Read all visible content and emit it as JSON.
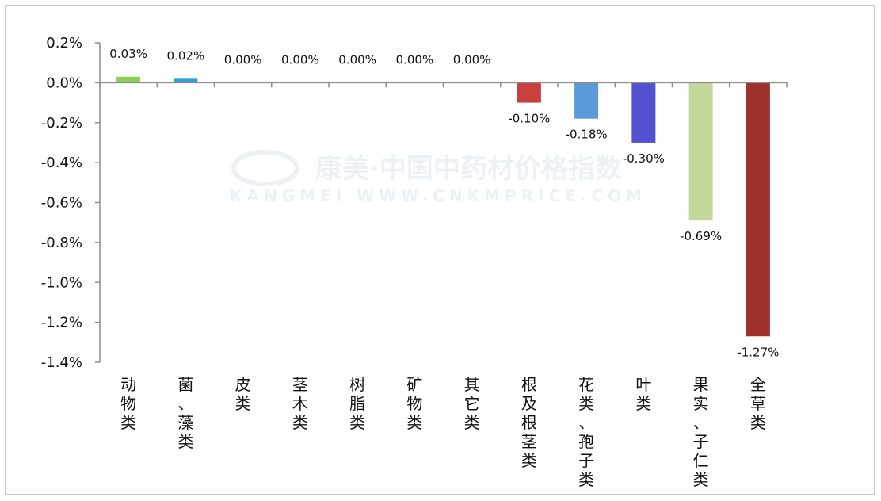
{
  "chart_data": {
    "type": "bar",
    "categories": [
      "动物类",
      "菌、藻类",
      "皮类",
      "茎木类",
      "树脂类",
      "矿物类",
      "其它类",
      "根及根茎类",
      "花类、孢子类",
      "叶类",
      "果实、子仁类",
      "全草类"
    ],
    "values": [
      0.03,
      0.02,
      0.0,
      0.0,
      0.0,
      0.0,
      0.0,
      -0.1,
      -0.18,
      -0.3,
      -0.69,
      -1.27
    ],
    "data_labels": [
      "0.03%",
      "0.02%",
      "0.00%",
      "0.00%",
      "0.00%",
      "0.00%",
      "0.00%",
      "-0.10%",
      "-0.18%",
      "-0.30%",
      "-0.69%",
      "-1.27%"
    ],
    "colors": [
      "#8ccf55",
      "#2f9fd6",
      "#b0b0b0",
      "#b0b0b0",
      "#b0b0b0",
      "#b0b0b0",
      "#b0b0b0",
      "#c9403e",
      "#5b9ad8",
      "#5152cf",
      "#c4d79b",
      "#9e302c"
    ],
    "yticks": [
      0.2,
      0.0,
      -0.2,
      -0.4,
      -0.6,
      -0.8,
      -1.0,
      -1.2,
      -1.4
    ],
    "ytick_labels": [
      "0.2%",
      "0.0%",
      "-0.2%",
      "-0.4%",
      "-0.6%",
      "-0.8%",
      "-1.0%",
      "-1.2%",
      "-1.4%"
    ],
    "ylim": [
      -1.4,
      0.2
    ],
    "title": "",
    "xlabel": "",
    "ylabel": "",
    "grid": false,
    "legend": "none"
  },
  "watermark": {
    "main": "康美·中国中药材价格指数",
    "sub": "KANGMEI  WWW.CNKMPRICE.COM"
  }
}
